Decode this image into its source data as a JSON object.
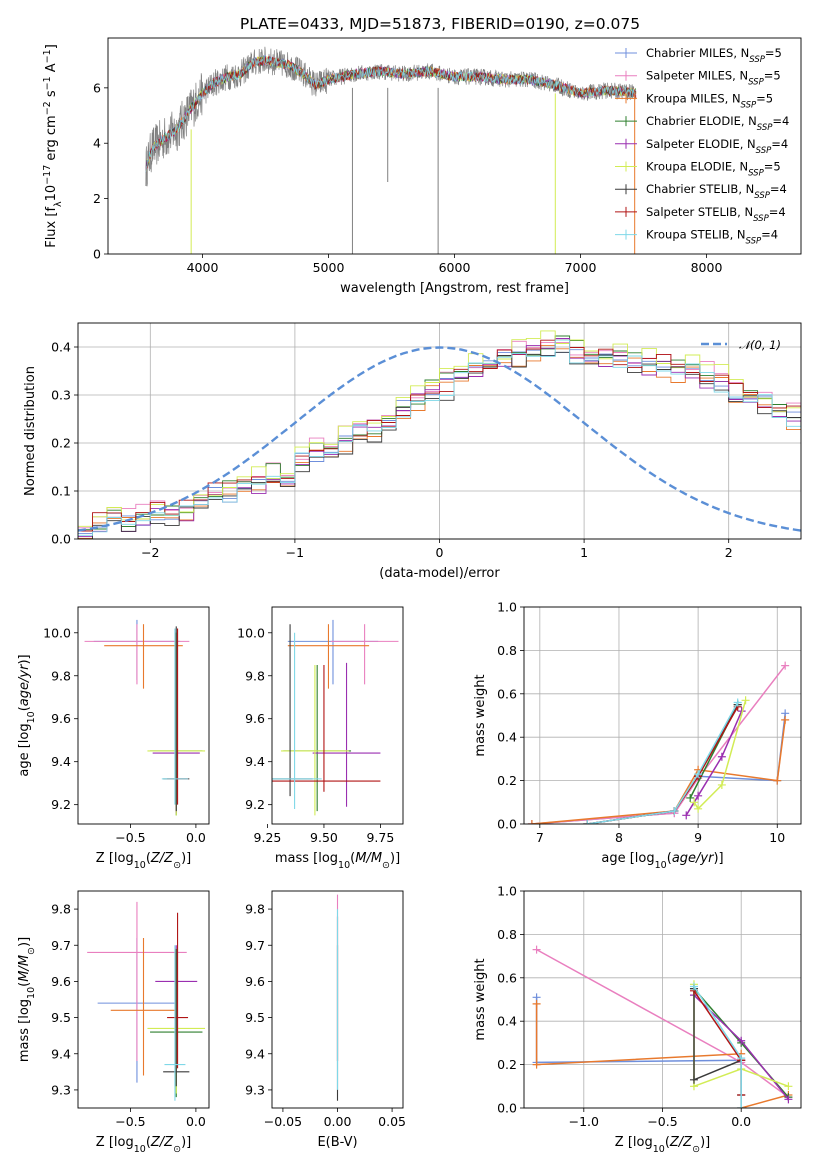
{
  "figure": {
    "title": "PLATE=0433, MJD=51873, FIBERID=0190, z=0.075"
  },
  "colors": {
    "Chabrier MILES": "#6f8fdc",
    "Salpeter MILES": "#e97fbf",
    "Kroupa MILES": "#e8792d",
    "Chabrier ELODIE": "#2f7f2f",
    "Salpeter ELODIE": "#9a2fb0",
    "Kroupa ELODIE": "#d2ec55",
    "Chabrier STELIB": "#3a3a3a",
    "Salpeter STELIB": "#b01515",
    "Kroupa STELIB": "#7fd8e8",
    "data": "#808080"
  },
  "chart_data": [
    {
      "id": "spectrum",
      "type": "line",
      "title": "PLATE=0433, MJD=51873, FIBERID=0190, z=0.075",
      "xlabel": "wavelength [Angstrom, rest frame]",
      "ylabel": "Flux [f_λ 10^-17 erg cm^-2 s^-1 A^-1]",
      "xlim": [
        3250,
        8750
      ],
      "ylim": [
        0,
        7.8
      ],
      "xticks": [
        4000,
        5000,
        6000,
        7000,
        8000
      ],
      "yticks": [
        0,
        2,
        4,
        6
      ],
      "legend_position": "right",
      "legend": [
        {
          "label": "Chabrier MILES, N_SSP=5",
          "color": "#6f8fdc"
        },
        {
          "label": "Salpeter MILES, N_SSP=5",
          "color": "#e97fbf"
        },
        {
          "label": "Kroupa MILES, N_SSP=5",
          "color": "#e8792d"
        },
        {
          "label": "Chabrier ELODIE, N_SSP=4",
          "color": "#2f7f2f"
        },
        {
          "label": "Salpeter ELODIE, N_SSP=4",
          "color": "#9a2fb0"
        },
        {
          "label": "Kroupa ELODIE, N_SSP=5",
          "color": "#d2ec55"
        },
        {
          "label": "Chabrier STELIB, N_SSP=4",
          "color": "#3a3a3a"
        },
        {
          "label": "Salpeter STELIB, N_SSP=4",
          "color": "#b01515"
        },
        {
          "label": "Kroupa STELIB, N_SSP=4",
          "color": "#7fd8e8"
        }
      ],
      "data_envelope": {
        "x": [
          3550,
          3600,
          3700,
          3800,
          3900,
          4000,
          4100,
          4200,
          4300,
          4400,
          4500,
          4600,
          4700,
          4800,
          4900,
          5000,
          5200,
          5400,
          5600,
          5800,
          6000,
          6200,
          6400,
          6600,
          6800,
          7000,
          7200,
          7400,
          7440
        ],
        "model_y": [
          3.1,
          3.8,
          4.2,
          4.5,
          5.2,
          5.8,
          6.2,
          6.4,
          6.5,
          6.9,
          7.0,
          6.9,
          6.8,
          6.5,
          6.1,
          6.3,
          6.5,
          6.6,
          6.5,
          6.6,
          6.4,
          6.4,
          6.3,
          6.3,
          6.1,
          5.8,
          5.9,
          5.85,
          5.8
        ]
      },
      "special_lines": [
        {
          "x": 3910,
          "ymin": 0.0,
          "ymax": 4.5,
          "color": "#d2ec55"
        },
        {
          "x": 5190,
          "ymin": 0.0,
          "ymax": 6.0,
          "color": "#808080"
        },
        {
          "x": 5470,
          "ymin": 2.6,
          "ymax": 6.0,
          "color": "#808080"
        },
        {
          "x": 5870,
          "ymin": 0.0,
          "ymax": 6.0,
          "color": "#808080"
        },
        {
          "x": 6800,
          "ymin": 0.0,
          "ymax": 5.8,
          "color": "#d2ec55"
        },
        {
          "x": 7430,
          "ymin": 0.0,
          "ymax": 5.8,
          "color": "#e8792d"
        }
      ]
    },
    {
      "id": "residuals",
      "type": "line",
      "xlabel": "(data-model)/error",
      "ylabel": "Normed distribution",
      "xlim": [
        -2.5,
        2.5
      ],
      "ylim": [
        0,
        0.45
      ],
      "xticks": [
        -2,
        -1,
        0,
        1,
        2
      ],
      "yticks": [
        0.0,
        0.1,
        0.2,
        0.3,
        0.4
      ],
      "grid": true,
      "legend_position": "top-right",
      "gaussian_label": "𝒩(0, 1)",
      "gaussian_color": "#5b8fd6",
      "bin_edges_start": -2.5,
      "bin_width": 0.1,
      "base_histogram": [
        0.03,
        0.03,
        0.035,
        0.035,
        0.045,
        0.055,
        0.05,
        0.06,
        0.09,
        0.095,
        0.1,
        0.11,
        0.12,
        0.13,
        0.14,
        0.165,
        0.18,
        0.19,
        0.205,
        0.225,
        0.23,
        0.245,
        0.27,
        0.29,
        0.31,
        0.32,
        0.34,
        0.355,
        0.37,
        0.375,
        0.39,
        0.395,
        0.4,
        0.405,
        0.39,
        0.385,
        0.38,
        0.375,
        0.37,
        0.365,
        0.36,
        0.355,
        0.35,
        0.34,
        0.33,
        0.31,
        0.3,
        0.285,
        0.27,
        0.255,
        0.24,
        0.22,
        0.2,
        0.185,
        0.17,
        0.155,
        0.14,
        0.125,
        0.11,
        0.1,
        0.09,
        0.08,
        0.07,
        0.06,
        0.05,
        0.045,
        0.04,
        0.035,
        0.03,
        0.025
      ],
      "series_offsets": [
        0.0,
        0.012,
        -0.01,
        0.008,
        -0.006,
        0.015,
        -0.012,
        0.005,
        -0.004
      ]
    },
    {
      "id": "age-vs-Z",
      "type": "scatter",
      "xlabel": "Z [log10(Z/Z⊙)]",
      "ylabel": "age  [log10(age/yr)]",
      "xlim": [
        -0.9,
        0.1
      ],
      "ylim": [
        9.11,
        10.12
      ],
      "xticks": [
        -0.5,
        0.0
      ],
      "yticks": [
        9.2,
        9.4,
        9.6,
        9.8,
        10.0
      ],
      "points": [
        {
          "series": "Chabrier MILES",
          "x": -0.45,
          "y": 9.96,
          "xerr": 0.33,
          "yerr": [
            0.18,
            0.1
          ]
        },
        {
          "series": "Salpeter MILES",
          "x": -0.45,
          "y": 9.96,
          "xerr": 0.4,
          "yerr": [
            0.2,
            0.08
          ]
        },
        {
          "series": "Kroupa MILES",
          "x": -0.4,
          "y": 9.94,
          "xerr": 0.3,
          "yerr": [
            0.2,
            0.1
          ]
        },
        {
          "series": "Chabrier ELODIE",
          "x": -0.15,
          "y": 9.45,
          "xerr": 0.2,
          "yerr": [
            0.3,
            0.55
          ]
        },
        {
          "series": "Salpeter ELODIE",
          "x": -0.15,
          "y": 9.44,
          "xerr": 0.18,
          "yerr": [
            0.28,
            0.56
          ]
        },
        {
          "series": "Kroupa ELODIE",
          "x": -0.15,
          "y": 9.45,
          "xerr": 0.22,
          "yerr": [
            0.3,
            0.55
          ]
        },
        {
          "series": "Chabrier STELIB",
          "x": -0.15,
          "y": 9.32,
          "xerr": 0.1,
          "yerr": [
            0.15,
            0.71
          ]
        },
        {
          "series": "Salpeter STELIB",
          "x": -0.14,
          "y": 9.32,
          "xerr": 0.08,
          "yerr": [
            0.12,
            0.7
          ]
        },
        {
          "series": "Kroupa STELIB",
          "x": -0.16,
          "y": 9.32,
          "xerr": 0.1,
          "yerr": [
            0.12,
            0.7
          ]
        }
      ]
    },
    {
      "id": "age-vs-mass",
      "type": "scatter",
      "xlabel": "mass [log10(M/M⊙)]",
      "ylabel": "",
      "xlim": [
        9.27,
        9.85
      ],
      "ylim": [
        9.11,
        10.12
      ],
      "xticks": [
        9.25,
        9.5,
        9.75
      ],
      "yticks": [
        9.2,
        9.4,
        9.6,
        9.8,
        10.0
      ],
      "points": [
        {
          "series": "Chabrier MILES",
          "x": 9.54,
          "y": 9.96,
          "xerr": 0.2,
          "yerr": [
            0.2,
            0.1
          ]
        },
        {
          "series": "Salpeter MILES",
          "x": 9.68,
          "y": 9.96,
          "xerr": 0.15,
          "yerr": [
            0.2,
            0.08
          ]
        },
        {
          "series": "Kroupa MILES",
          "x": 9.52,
          "y": 9.94,
          "xerr": 0.18,
          "yerr": [
            0.2,
            0.1
          ]
        },
        {
          "series": "Chabrier ELODIE",
          "x": 9.47,
          "y": 9.45,
          "xerr": 0.15,
          "yerr": [
            0.28,
            0.4
          ]
        },
        {
          "series": "Salpeter ELODIE",
          "x": 9.6,
          "y": 9.44,
          "xerr": 0.15,
          "yerr": [
            0.25,
            0.42
          ]
        },
        {
          "series": "Kroupa ELODIE",
          "x": 9.46,
          "y": 9.45,
          "xerr": 0.15,
          "yerr": [
            0.3,
            0.4
          ]
        },
        {
          "series": "Chabrier STELIB",
          "x": 9.35,
          "y": 9.32,
          "xerr": 0.1,
          "yerr": [
            0.08,
            0.72
          ]
        },
        {
          "series": "Salpeter STELIB",
          "x": 9.5,
          "y": 9.31,
          "xerr": 0.25,
          "yerr": [
            0.05,
            0.54
          ]
        },
        {
          "series": "Kroupa STELIB",
          "x": 9.37,
          "y": 9.32,
          "xerr": 0.12,
          "yerr": [
            0.14,
            0.68
          ]
        }
      ]
    },
    {
      "id": "weight-vs-age",
      "type": "line",
      "xlabel": "age  [log10(age/yr)]",
      "ylabel": "mass weight",
      "xlim": [
        6.8,
        10.3
      ],
      "ylim": [
        0,
        1.0
      ],
      "xticks": [
        7,
        8,
        9,
        10
      ],
      "yticks": [
        0.0,
        0.2,
        0.4,
        0.6,
        0.8,
        1.0
      ],
      "grid": true,
      "series": [
        {
          "name": "Chabrier MILES",
          "x": [
            6.9,
            8.7,
            9.0,
            10.0,
            10.1
          ],
          "y": [
            0.0,
            0.05,
            0.22,
            0.2,
            0.51
          ]
        },
        {
          "name": "Salpeter MILES",
          "x": [
            6.9,
            8.7,
            9.0,
            10.1
          ],
          "y": [
            0.0,
            0.05,
            0.21,
            0.73
          ]
        },
        {
          "name": "Kroupa MILES",
          "x": [
            6.9,
            8.7,
            9.0,
            10.0,
            10.1
          ],
          "y": [
            0.0,
            0.06,
            0.25,
            0.2,
            0.48
          ]
        },
        {
          "name": "Chabrier ELODIE",
          "x": [
            8.9,
            9.5
          ],
          "y": [
            0.12,
            0.55
          ]
        },
        {
          "name": "Salpeter ELODIE",
          "x": [
            8.85,
            9.0,
            9.3,
            9.55
          ],
          "y": [
            0.04,
            0.13,
            0.31,
            0.52
          ]
        },
        {
          "name": "Kroupa ELODIE",
          "x": [
            8.95,
            9.0,
            9.3,
            9.6
          ],
          "y": [
            0.1,
            0.07,
            0.18,
            0.57
          ]
        },
        {
          "name": "Chabrier STELIB",
          "x": [
            7.6,
            8.7,
            9.0,
            9.5
          ],
          "y": [
            0.0,
            0.06,
            0.22,
            0.55
          ]
        },
        {
          "name": "Salpeter STELIB",
          "x": [
            7.6,
            8.7,
            9.0,
            9.5
          ],
          "y": [
            0.0,
            0.06,
            0.22,
            0.54
          ]
        },
        {
          "name": "Kroupa STELIB",
          "x": [
            7.6,
            8.7,
            9.0,
            9.5
          ],
          "y": [
            0.0,
            0.06,
            0.23,
            0.56
          ]
        }
      ]
    },
    {
      "id": "mass-vs-Z",
      "type": "scatter",
      "xlabel": "Z [log10(Z/Z⊙)]",
      "ylabel": "mass [log10(M/M⊙)]",
      "xlim": [
        -0.9,
        0.1
      ],
      "ylim": [
        9.25,
        9.85
      ],
      "xticks": [
        -0.5,
        0.0
      ],
      "yticks": [
        9.3,
        9.4,
        9.5,
        9.6,
        9.7,
        9.8
      ],
      "points": [
        {
          "series": "Chabrier MILES",
          "x": -0.45,
          "y": 9.54,
          "xerr": 0.3,
          "yerr": [
            0.22,
            0.18
          ]
        },
        {
          "series": "Salpeter MILES",
          "x": -0.45,
          "y": 9.68,
          "xerr": 0.38,
          "yerr": [
            0.3,
            0.14
          ]
        },
        {
          "series": "Kroupa MILES",
          "x": -0.4,
          "y": 9.52,
          "xerr": 0.25,
          "yerr": [
            0.18,
            0.2
          ]
        },
        {
          "series": "Chabrier ELODIE",
          "x": -0.15,
          "y": 9.46,
          "xerr": 0.2,
          "yerr": [
            0.18,
            0.22
          ]
        },
        {
          "series": "Salpeter ELODIE",
          "x": -0.15,
          "y": 9.6,
          "xerr": 0.16,
          "yerr": [
            0.25,
            0.1
          ]
        },
        {
          "series": "Kroupa ELODIE",
          "x": -0.15,
          "y": 9.47,
          "xerr": 0.22,
          "yerr": [
            0.18,
            0.22
          ]
        },
        {
          "series": "Chabrier STELIB",
          "x": -0.15,
          "y": 9.35,
          "xerr": 0.1,
          "yerr": [
            0.04,
            0.34
          ]
        },
        {
          "series": "Salpeter STELIB",
          "x": -0.14,
          "y": 9.5,
          "xerr": 0.08,
          "yerr": [
            0.14,
            0.29
          ]
        },
        {
          "series": "Kroupa STELIB",
          "x": -0.16,
          "y": 9.37,
          "xerr": 0.08,
          "yerr": [
            0.1,
            0.33
          ]
        }
      ]
    },
    {
      "id": "mass-vs-EBV",
      "type": "scatter",
      "xlabel": "E(B-V)",
      "ylabel": "",
      "xlim": [
        -0.06,
        0.06
      ],
      "ylim": [
        9.25,
        9.85
      ],
      "xticks": [
        -0.05,
        0.0,
        0.05
      ],
      "xticklabels": [
        "−0.05",
        "0.00",
        "0.05"
      ],
      "yticks": [
        9.3,
        9.4,
        9.5,
        9.6,
        9.7,
        9.8
      ],
      "points": [
        {
          "series": "Salpeter MILES",
          "x": 0.0,
          "y": 9.68,
          "yerr": [
            0.3,
            0.16
          ]
        },
        {
          "series": "Salpeter STELIB",
          "x": 0.0,
          "y": 9.58,
          "yerr": [
            0.2,
            0.2
          ]
        },
        {
          "series": "Chabrier STELIB",
          "x": 0.0,
          "y": 9.4,
          "yerr": [
            0.13,
            0.3
          ]
        },
        {
          "series": "Kroupa STELIB",
          "x": 0.0,
          "y": 9.5,
          "yerr": [
            0.2,
            0.3
          ]
        }
      ]
    },
    {
      "id": "weight-vs-Z",
      "type": "line",
      "xlabel": "Z [log10(Z/Z⊙)]",
      "ylabel": "mass weight",
      "xlim": [
        -1.38,
        0.38
      ],
      "ylim": [
        0,
        1.0
      ],
      "xticks": [
        -1.0,
        -0.5,
        0.0
      ],
      "yticks": [
        0.0,
        0.2,
        0.4,
        0.6,
        0.8,
        1.0
      ],
      "grid": true,
      "series": [
        {
          "name": "Chabrier MILES",
          "x": [
            -1.3,
            -1.3,
            0.0,
            0.0
          ],
          "y": [
            0.51,
            0.21,
            0.22,
            0.0
          ]
        },
        {
          "name": "Salpeter MILES",
          "x": [
            -1.3,
            0.0,
            0.3
          ],
          "y": [
            0.73,
            0.21,
            0.05
          ]
        },
        {
          "name": "Kroupa MILES",
          "x": [
            -1.3,
            -1.3,
            0.0,
            0.0,
            0.3
          ],
          "y": [
            0.48,
            0.2,
            0.25,
            0.0,
            0.06
          ]
        },
        {
          "name": "Chabrier ELODIE",
          "x": [
            -0.3,
            0.0,
            0.3
          ],
          "y": [
            0.55,
            0.3,
            0.05
          ]
        },
        {
          "name": "Salpeter ELODIE",
          "x": [
            -0.3,
            0.0,
            0.3
          ],
          "y": [
            0.52,
            0.31,
            0.04
          ]
        },
        {
          "name": "Kroupa ELODIE",
          "x": [
            -0.3,
            -0.3,
            0.0,
            0.3
          ],
          "y": [
            0.57,
            0.1,
            0.18,
            0.1
          ]
        },
        {
          "name": "Chabrier STELIB",
          "x": [
            -0.3,
            -0.3,
            0.0,
            0.0
          ],
          "y": [
            0.55,
            0.13,
            0.22,
            0.06
          ]
        },
        {
          "name": "Salpeter STELIB",
          "x": [
            -0.3,
            0.0,
            0.0
          ],
          "y": [
            0.54,
            0.22,
            0.06
          ]
        },
        {
          "name": "Kroupa STELIB",
          "x": [
            -0.3,
            0.0,
            0.0
          ],
          "y": [
            0.56,
            0.23,
            0.0
          ]
        }
      ]
    }
  ]
}
